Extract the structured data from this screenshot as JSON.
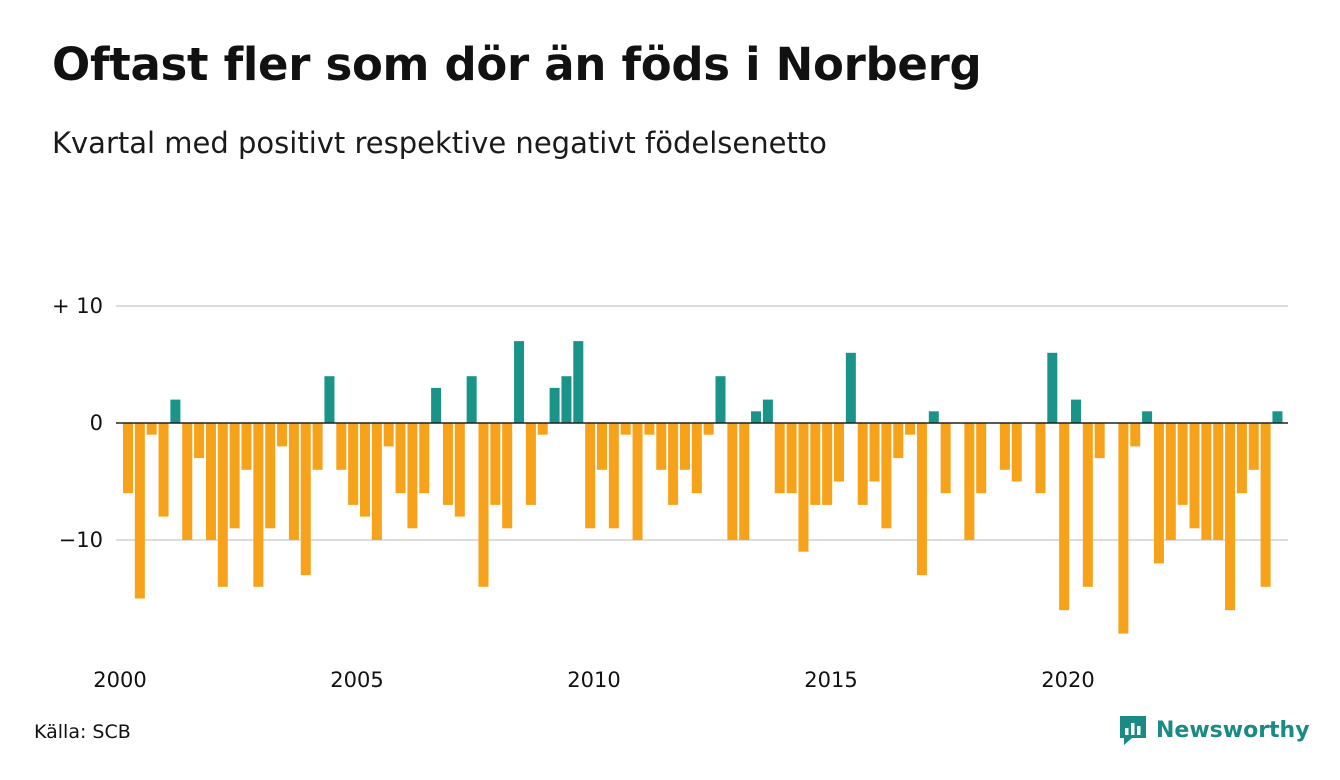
{
  "header": {
    "title": "Oftast fler som dör än föds i Norberg",
    "subtitle": "Kvartal med positivt respektive negativt födelsenetto"
  },
  "footer": {
    "source": "Källa: SCB",
    "logo_text": "Newsworthy"
  },
  "colors": {
    "positive": "#1a9488",
    "negative": "#f7a21b",
    "gridline": "#dddddd",
    "zero_line": "#222222",
    "logo": "#1a8a84"
  },
  "chart_data": {
    "type": "bar",
    "title": "Oftast fler som dör än föds i Norberg",
    "subtitle": "Kvartal med positivt respektive negativt födelsenetto",
    "x_start": "2000 Q1",
    "x_ticks": [
      {
        "year": 2000,
        "label": "2000"
      },
      {
        "year": 2005,
        "label": "2005"
      },
      {
        "year": 2010,
        "label": "2010"
      },
      {
        "year": 2015,
        "label": "2015"
      },
      {
        "year": 2020,
        "label": "2020"
      }
    ],
    "y_ticks": [
      {
        "value": 10,
        "label": "+ 10"
      },
      {
        "value": 0,
        "label": "0"
      },
      {
        "value": -10,
        "label": "−10"
      }
    ],
    "ylim": [
      -18,
      10
    ],
    "grid": true,
    "values": [
      -6,
      -15,
      -1,
      -8,
      2,
      -10,
      -3,
      -10,
      -14,
      -9,
      -4,
      -14,
      -9,
      -2,
      -10,
      -13,
      -4,
      4,
      -4,
      -7,
      -8,
      -10,
      -2,
      -6,
      -9,
      -6,
      3,
      -7,
      -8,
      4,
      -14,
      -7,
      -9,
      7,
      -7,
      -1,
      3,
      4,
      7,
      -9,
      -4,
      -9,
      -1,
      -10,
      -1,
      -4,
      -7,
      -4,
      -6,
      -1,
      4,
      -10,
      -10,
      1,
      2,
      -6,
      -6,
      -11,
      -7,
      -7,
      -5,
      6,
      -7,
      -5,
      -9,
      -3,
      -1,
      -13,
      1,
      -6,
      0,
      -10,
      -6,
      0,
      -4,
      -5,
      0,
      -6,
      6,
      -16,
      2,
      -14,
      -3,
      0,
      -18,
      -2,
      1,
      -12,
      -10,
      -7,
      -9,
      -10,
      -10,
      -16,
      -6,
      -4,
      -14,
      1
    ]
  }
}
